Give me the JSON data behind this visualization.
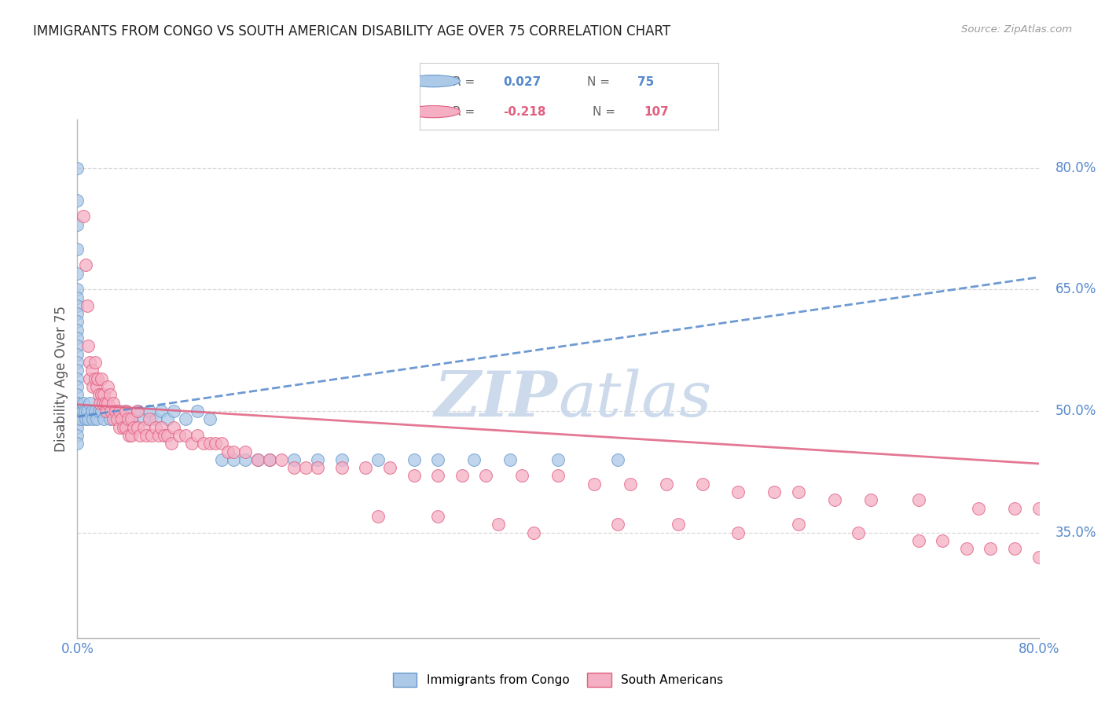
{
  "title": "IMMIGRANTS FROM CONGO VS SOUTH AMERICAN DISABILITY AGE OVER 75 CORRELATION CHART",
  "source": "Source: ZipAtlas.com",
  "ylabel": "Disability Age Over 75",
  "right_ytick_vals": [
    0.8,
    0.65,
    0.5,
    0.35
  ],
  "right_ytick_labels": [
    "80.0%",
    "65.0%",
    "50.0%",
    "35.0%"
  ],
  "xlim": [
    0.0,
    0.8
  ],
  "ylim": [
    0.22,
    0.86
  ],
  "congo_color": "#adc9e8",
  "congo_edge_color": "#6699cc",
  "south_color": "#f5afc5",
  "south_edge_color": "#e06080",
  "trend_congo_color": "#5588cc",
  "trend_south_color": "#e06080",
  "watermark_color": "#ccdaeb",
  "background_color": "#ffffff",
  "grid_color": "#d8d8d8",
  "axis_color": "#bbbbbb",
  "title_color": "#222222",
  "tick_color": "#5588cc",
  "congo_points_x": [
    0.0,
    0.0,
    0.0,
    0.0,
    0.0,
    0.0,
    0.0,
    0.0,
    0.0,
    0.0,
    0.0,
    0.0,
    0.0,
    0.0,
    0.0,
    0.0,
    0.0,
    0.0,
    0.0,
    0.0,
    0.0,
    0.0,
    0.0,
    0.0,
    0.0,
    0.0,
    0.0,
    0.0,
    0.003,
    0.003,
    0.004,
    0.005,
    0.006,
    0.007,
    0.008,
    0.009,
    0.01,
    0.012,
    0.013,
    0.015,
    0.016,
    0.018,
    0.02,
    0.022,
    0.025,
    0.027,
    0.03,
    0.035,
    0.04,
    0.045,
    0.05,
    0.055,
    0.06,
    0.065,
    0.07,
    0.075,
    0.08,
    0.09,
    0.1,
    0.11,
    0.12,
    0.13,
    0.14,
    0.15,
    0.16,
    0.18,
    0.2,
    0.22,
    0.25,
    0.28,
    0.3,
    0.33,
    0.36,
    0.4,
    0.45
  ],
  "congo_points_y": [
    0.8,
    0.76,
    0.73,
    0.7,
    0.67,
    0.65,
    0.64,
    0.63,
    0.62,
    0.61,
    0.6,
    0.59,
    0.58,
    0.57,
    0.56,
    0.55,
    0.54,
    0.53,
    0.52,
    0.51,
    0.51,
    0.5,
    0.5,
    0.49,
    0.49,
    0.48,
    0.47,
    0.46,
    0.5,
    0.49,
    0.5,
    0.51,
    0.5,
    0.49,
    0.5,
    0.49,
    0.51,
    0.5,
    0.49,
    0.5,
    0.49,
    0.5,
    0.5,
    0.49,
    0.5,
    0.49,
    0.5,
    0.49,
    0.5,
    0.49,
    0.5,
    0.49,
    0.5,
    0.49,
    0.5,
    0.49,
    0.5,
    0.49,
    0.5,
    0.49,
    0.44,
    0.44,
    0.44,
    0.44,
    0.44,
    0.44,
    0.44,
    0.44,
    0.44,
    0.44,
    0.44,
    0.44,
    0.44,
    0.44,
    0.44
  ],
  "south_points_x": [
    0.005,
    0.007,
    0.008,
    0.009,
    0.01,
    0.01,
    0.012,
    0.013,
    0.015,
    0.015,
    0.016,
    0.017,
    0.018,
    0.019,
    0.02,
    0.02,
    0.021,
    0.022,
    0.023,
    0.024,
    0.025,
    0.025,
    0.027,
    0.028,
    0.03,
    0.03,
    0.032,
    0.033,
    0.035,
    0.035,
    0.037,
    0.038,
    0.04,
    0.04,
    0.042,
    0.043,
    0.045,
    0.045,
    0.047,
    0.05,
    0.05,
    0.052,
    0.055,
    0.057,
    0.06,
    0.062,
    0.065,
    0.068,
    0.07,
    0.072,
    0.075,
    0.078,
    0.08,
    0.085,
    0.09,
    0.095,
    0.1,
    0.105,
    0.11,
    0.115,
    0.12,
    0.125,
    0.13,
    0.14,
    0.15,
    0.16,
    0.17,
    0.18,
    0.19,
    0.2,
    0.22,
    0.24,
    0.26,
    0.28,
    0.3,
    0.32,
    0.34,
    0.37,
    0.4,
    0.43,
    0.46,
    0.49,
    0.52,
    0.55,
    0.58,
    0.6,
    0.63,
    0.66,
    0.7,
    0.75,
    0.78,
    0.8,
    0.35,
    0.38,
    0.3,
    0.25,
    0.55,
    0.5,
    0.45,
    0.6,
    0.65,
    0.7,
    0.72,
    0.74,
    0.76,
    0.78,
    0.8
  ],
  "south_points_y": [
    0.74,
    0.68,
    0.63,
    0.58,
    0.56,
    0.54,
    0.55,
    0.53,
    0.56,
    0.54,
    0.53,
    0.54,
    0.52,
    0.51,
    0.54,
    0.52,
    0.51,
    0.52,
    0.51,
    0.5,
    0.53,
    0.51,
    0.52,
    0.5,
    0.51,
    0.49,
    0.5,
    0.49,
    0.5,
    0.48,
    0.49,
    0.48,
    0.5,
    0.48,
    0.49,
    0.47,
    0.49,
    0.47,
    0.48,
    0.5,
    0.48,
    0.47,
    0.48,
    0.47,
    0.49,
    0.47,
    0.48,
    0.47,
    0.48,
    0.47,
    0.47,
    0.46,
    0.48,
    0.47,
    0.47,
    0.46,
    0.47,
    0.46,
    0.46,
    0.46,
    0.46,
    0.45,
    0.45,
    0.45,
    0.44,
    0.44,
    0.44,
    0.43,
    0.43,
    0.43,
    0.43,
    0.43,
    0.43,
    0.42,
    0.42,
    0.42,
    0.42,
    0.42,
    0.42,
    0.41,
    0.41,
    0.41,
    0.41,
    0.4,
    0.4,
    0.4,
    0.39,
    0.39,
    0.39,
    0.38,
    0.38,
    0.38,
    0.36,
    0.35,
    0.37,
    0.37,
    0.35,
    0.36,
    0.36,
    0.36,
    0.35,
    0.34,
    0.34,
    0.33,
    0.33,
    0.33,
    0.32
  ],
  "trend_congo_start_y": 0.493,
  "trend_congo_end_y": 0.665,
  "trend_south_start_y": 0.508,
  "trend_south_end_y": 0.435
}
